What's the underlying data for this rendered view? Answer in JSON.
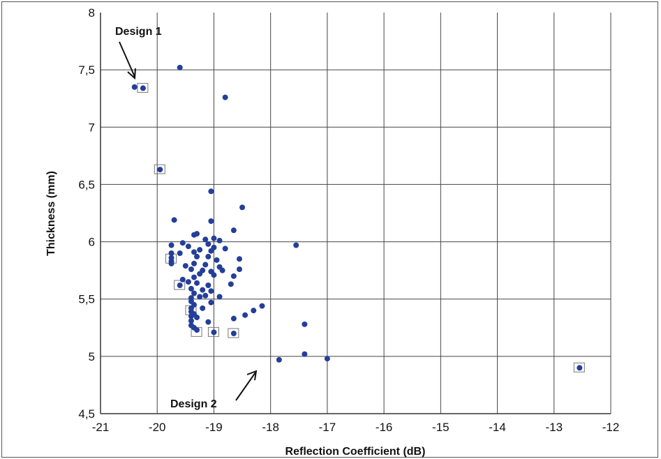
{
  "chart_data": {
    "type": "scatter",
    "xlabel": "Reflection Coefficient (dB)",
    "ylabel": "Thickness (mm)",
    "xlim": [
      -21,
      -12
    ],
    "ylim": [
      4.5,
      8
    ],
    "x_ticks": [
      "-21",
      "-20",
      "-19",
      "-18",
      "-17",
      "-16",
      "-15",
      "-14",
      "-13",
      "-12"
    ],
    "y_ticks": [
      "4,5",
      "5",
      "5,5",
      "6",
      "6,5",
      "7",
      "7,5",
      "8"
    ],
    "grid": true,
    "marker_color": "#243f99",
    "annotations": [
      "Design 1",
      "Design 2"
    ],
    "points": [
      {
        "x": -20.4,
        "y": 7.35
      },
      {
        "x": -20.25,
        "y": 7.34
      },
      {
        "x": -19.6,
        "y": 7.52
      },
      {
        "x": -18.8,
        "y": 7.26
      },
      {
        "x": -19.95,
        "y": 6.63
      },
      {
        "x": -19.05,
        "y": 6.44
      },
      {
        "x": -18.5,
        "y": 6.3
      },
      {
        "x": -19.7,
        "y": 6.19
      },
      {
        "x": -19.05,
        "y": 6.18
      },
      {
        "x": -18.65,
        "y": 6.1
      },
      {
        "x": -19.3,
        "y": 6.07
      },
      {
        "x": -19.35,
        "y": 6.06
      },
      {
        "x": -19.15,
        "y": 6.02
      },
      {
        "x": -19.0,
        "y": 6.03
      },
      {
        "x": -18.9,
        "y": 6.01
      },
      {
        "x": -19.1,
        "y": 5.98
      },
      {
        "x": -19.55,
        "y": 5.99
      },
      {
        "x": -19.45,
        "y": 5.96
      },
      {
        "x": -19.75,
        "y": 5.97
      },
      {
        "x": -19.0,
        "y": 5.95
      },
      {
        "x": -18.8,
        "y": 5.94
      },
      {
        "x": -17.55,
        "y": 5.97
      },
      {
        "x": -19.25,
        "y": 5.93
      },
      {
        "x": -19.05,
        "y": 5.92
      },
      {
        "x": -19.35,
        "y": 5.91
      },
      {
        "x": -19.75,
        "y": 5.9
      },
      {
        "x": -19.6,
        "y": 5.9
      },
      {
        "x": -19.75,
        "y": 5.86
      },
      {
        "x": -19.3,
        "y": 5.87
      },
      {
        "x": -19.1,
        "y": 5.87
      },
      {
        "x": -19.75,
        "y": 5.83
      },
      {
        "x": -18.95,
        "y": 5.84
      },
      {
        "x": -18.55,
        "y": 5.85
      },
      {
        "x": -19.75,
        "y": 5.81
      },
      {
        "x": -19.35,
        "y": 5.81
      },
      {
        "x": -19.15,
        "y": 5.8
      },
      {
        "x": -18.9,
        "y": 5.78
      },
      {
        "x": -19.5,
        "y": 5.79
      },
      {
        "x": -19.4,
        "y": 5.76
      },
      {
        "x": -19.2,
        "y": 5.75
      },
      {
        "x": -19.05,
        "y": 5.74
      },
      {
        "x": -18.85,
        "y": 5.75
      },
      {
        "x": -18.55,
        "y": 5.76
      },
      {
        "x": -19.25,
        "y": 5.72
      },
      {
        "x": -19.0,
        "y": 5.71
      },
      {
        "x": -19.35,
        "y": 5.69
      },
      {
        "x": -18.65,
        "y": 5.7
      },
      {
        "x": -19.55,
        "y": 5.67
      },
      {
        "x": -19.45,
        "y": 5.65
      },
      {
        "x": -19.6,
        "y": 5.62
      },
      {
        "x": -19.3,
        "y": 5.64
      },
      {
        "x": -19.1,
        "y": 5.62
      },
      {
        "x": -18.7,
        "y": 5.63
      },
      {
        "x": -19.2,
        "y": 5.58
      },
      {
        "x": -19.4,
        "y": 5.59
      },
      {
        "x": -19.05,
        "y": 5.57
      },
      {
        "x": -19.35,
        "y": 5.55
      },
      {
        "x": -19.15,
        "y": 5.53
      },
      {
        "x": -19.4,
        "y": 5.51
      },
      {
        "x": -19.25,
        "y": 5.52
      },
      {
        "x": -18.9,
        "y": 5.52
      },
      {
        "x": -19.4,
        "y": 5.48
      },
      {
        "x": -19.05,
        "y": 5.47
      },
      {
        "x": -19.35,
        "y": 5.45
      },
      {
        "x": -18.15,
        "y": 5.44
      },
      {
        "x": -19.4,
        "y": 5.42
      },
      {
        "x": -19.2,
        "y": 5.42
      },
      {
        "x": -18.3,
        "y": 5.4
      },
      {
        "x": -19.4,
        "y": 5.39
      },
      {
        "x": -19.35,
        "y": 5.37
      },
      {
        "x": -18.45,
        "y": 5.36
      },
      {
        "x": -19.4,
        "y": 5.35
      },
      {
        "x": -19.3,
        "y": 5.34
      },
      {
        "x": -18.65,
        "y": 5.33
      },
      {
        "x": -19.4,
        "y": 5.31
      },
      {
        "x": -19.1,
        "y": 5.3
      },
      {
        "x": -17.4,
        "y": 5.28
      },
      {
        "x": -19.4,
        "y": 5.27
      },
      {
        "x": -19.35,
        "y": 5.25
      },
      {
        "x": -19.3,
        "y": 5.23
      },
      {
        "x": -19.0,
        "y": 5.21
      },
      {
        "x": -18.65,
        "y": 5.2
      },
      {
        "x": -17.85,
        "y": 4.97
      },
      {
        "x": -17.4,
        "y": 5.02
      },
      {
        "x": -17.0,
        "y": 4.98
      },
      {
        "x": -12.55,
        "y": 4.9
      }
    ],
    "boxed_points": [
      {
        "x": -20.25,
        "y": 7.34
      },
      {
        "x": -19.95,
        "y": 6.63
      },
      {
        "x": -19.75,
        "y": 5.85
      },
      {
        "x": -19.6,
        "y": 5.62
      },
      {
        "x": -19.4,
        "y": 5.4
      },
      {
        "x": -19.3,
        "y": 5.21
      },
      {
        "x": -19.0,
        "y": 5.21
      },
      {
        "x": -18.65,
        "y": 5.2
      },
      {
        "x": -12.55,
        "y": 4.9
      }
    ]
  }
}
